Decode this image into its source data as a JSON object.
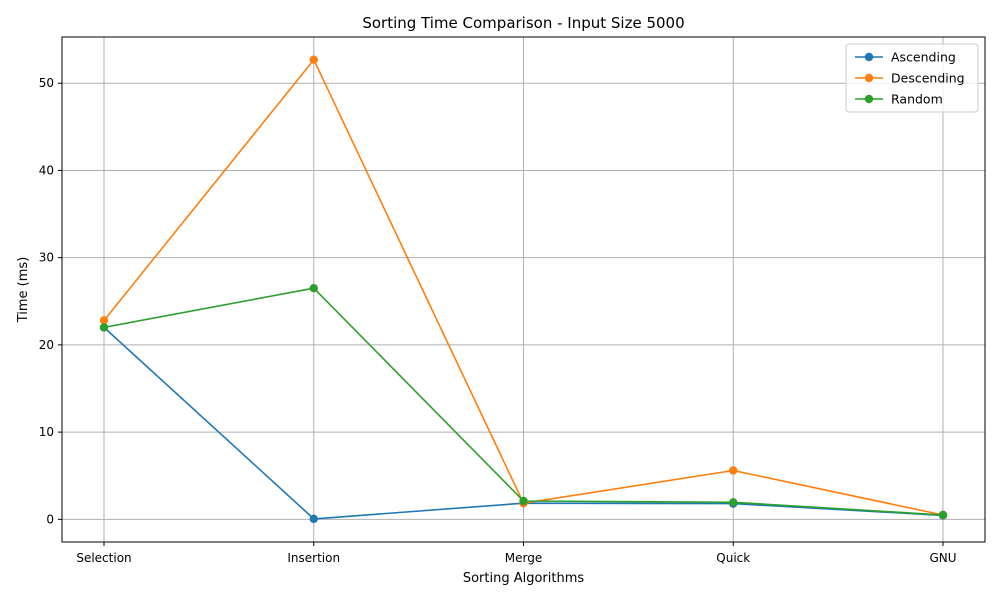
{
  "chart_data": {
    "type": "line",
    "title": "Sorting Time Comparison - Input Size 5000",
    "xlabel": "Sorting Algorithms",
    "ylabel": "Time (ms)",
    "categories": [
      "Selection",
      "Insertion",
      "Merge",
      "Quick",
      "GNU"
    ],
    "ylim": [
      -2.6,
      55.3
    ],
    "yticks": [
      0,
      10,
      20,
      30,
      40,
      50
    ],
    "grid": true,
    "legend_position": "top-right",
    "markers": "circle",
    "series": [
      {
        "name": "Ascending",
        "color": "#1f77b4",
        "values": [
          22.0,
          0.05,
          1.85,
          1.8,
          0.45
        ]
      },
      {
        "name": "Descending",
        "color": "#ff7f0e",
        "values": [
          22.8,
          52.7,
          1.85,
          5.6,
          0.5
        ]
      },
      {
        "name": "Random",
        "color": "#2ca02c",
        "values": [
          22.0,
          26.5,
          2.1,
          1.95,
          0.5
        ]
      }
    ]
  }
}
